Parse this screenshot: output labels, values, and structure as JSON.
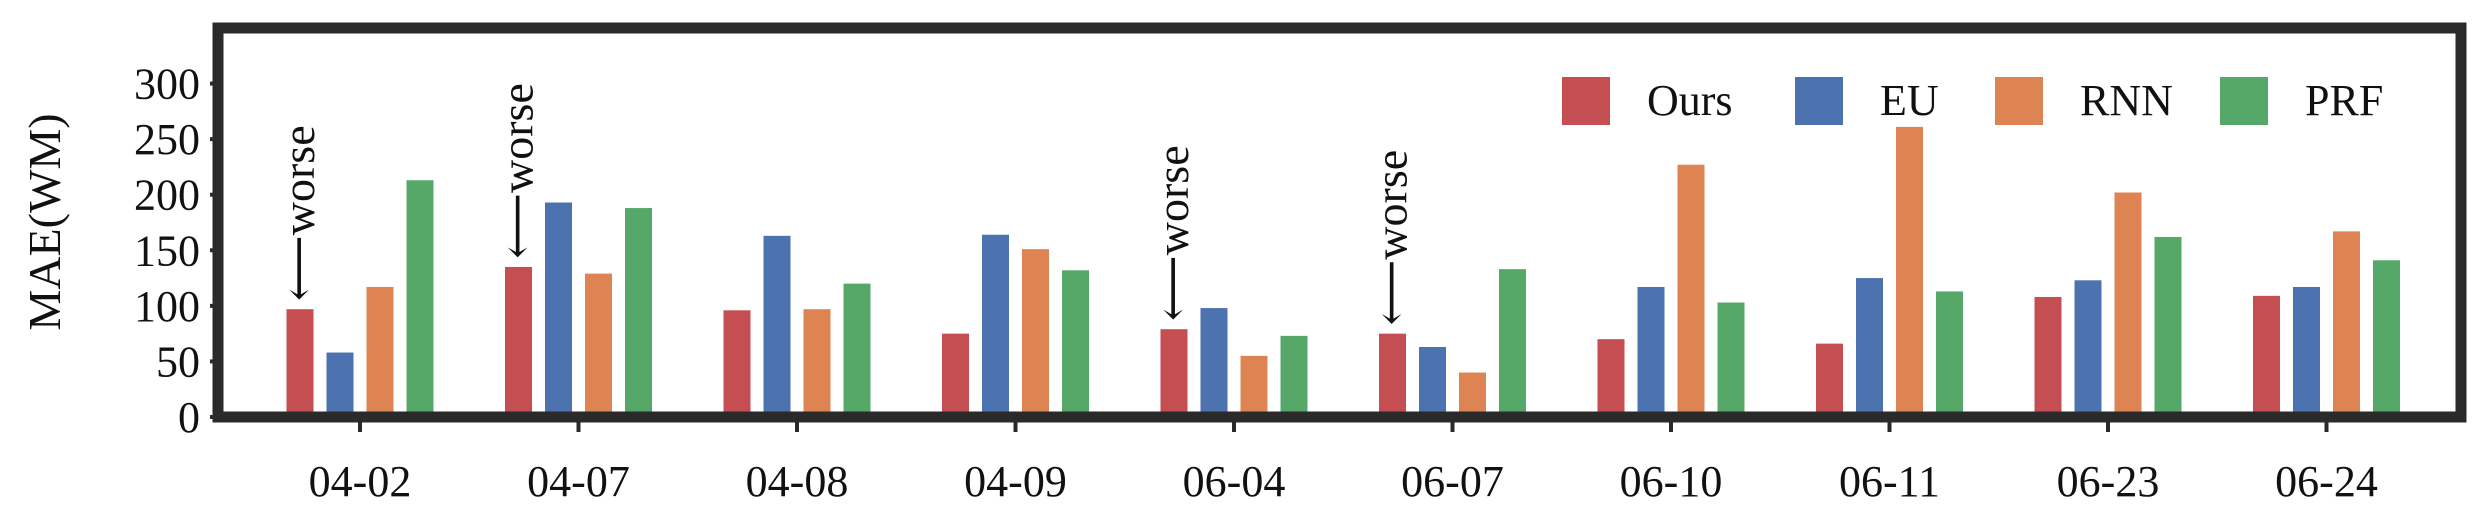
{
  "chart_data": {
    "type": "bar",
    "ylabel": "MAE(WM)",
    "xlabel": "",
    "ylim": [
      0,
      350
    ],
    "yticks": [
      0,
      50,
      100,
      150,
      200,
      250,
      300
    ],
    "categories": [
      "04-02",
      "04-07",
      "04-08",
      "04-09",
      "06-04",
      "06-07",
      "06-10",
      "06-11",
      "06-23",
      "06-24"
    ],
    "series": [
      {
        "name": "Ours",
        "color": "#c44e52",
        "values": [
          97,
          135,
          96,
          75,
          79,
          75,
          70,
          66,
          108,
          109
        ]
      },
      {
        "name": "EU",
        "color": "#4c72b0",
        "values": [
          58,
          193,
          163,
          164,
          98,
          63,
          117,
          125,
          123,
          117
        ]
      },
      {
        "name": "RNN",
        "color": "#dd8452",
        "values": [
          117,
          129,
          97,
          151,
          55,
          40,
          227,
          261,
          202,
          167
        ]
      },
      {
        "name": "PRF",
        "color": "#55a868",
        "values": [
          213,
          188,
          120,
          132,
          73,
          133,
          103,
          113,
          162,
          141
        ]
      }
    ],
    "legend": {
      "placement": "top-right",
      "columns": 4
    },
    "annotations": [
      {
        "text": "⟵worse",
        "category": "04-02",
        "series": "Ours"
      },
      {
        "text": "⟵worse",
        "category": "04-07",
        "series": "Ours"
      },
      {
        "text": "⟵worse",
        "category": "06-04",
        "series": "Ours"
      },
      {
        "text": "⟵worse",
        "category": "06-07",
        "series": "Ours"
      }
    ],
    "grid": false
  }
}
